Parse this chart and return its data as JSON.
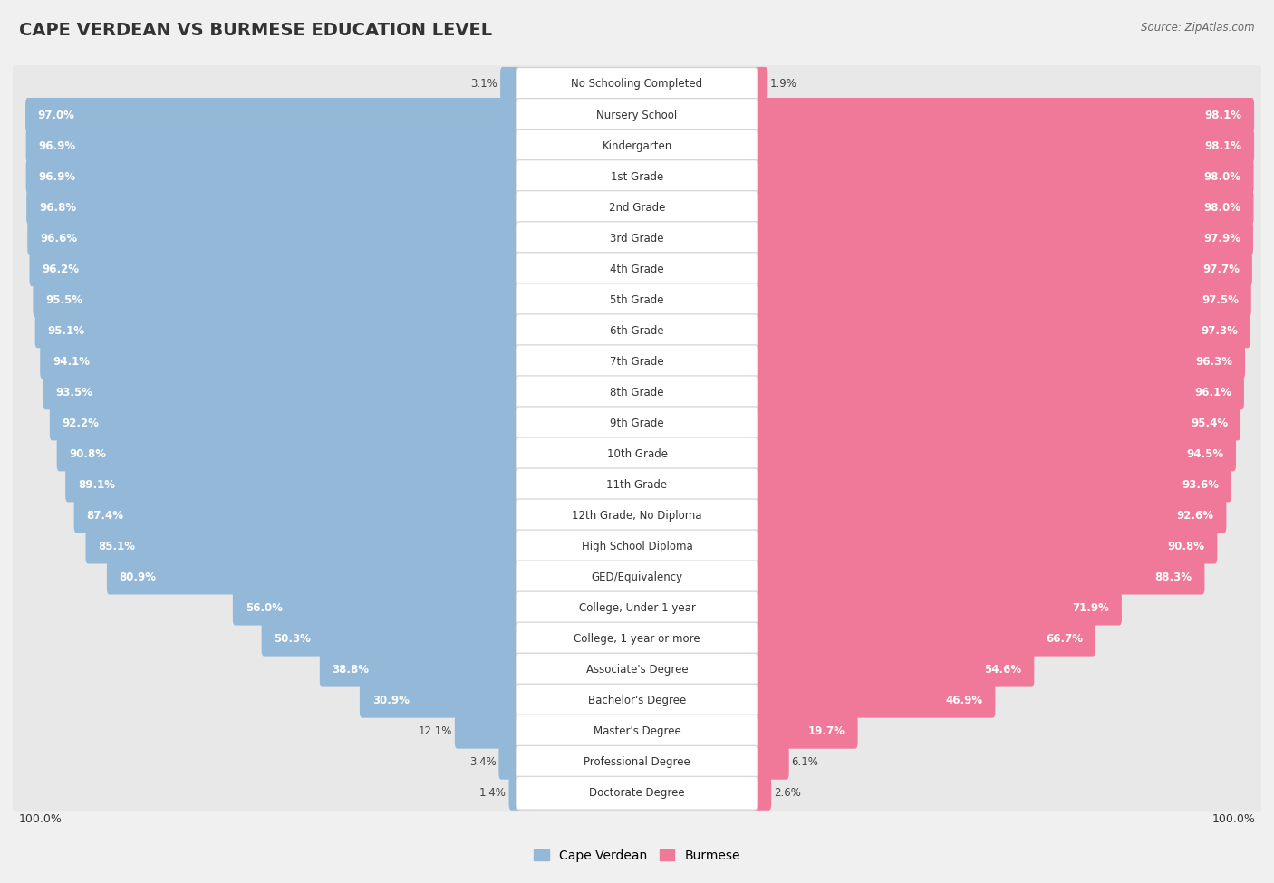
{
  "title": "CAPE VERDEAN VS BURMESE EDUCATION LEVEL",
  "source": "Source: ZipAtlas.com",
  "categories": [
    "No Schooling Completed",
    "Nursery School",
    "Kindergarten",
    "1st Grade",
    "2nd Grade",
    "3rd Grade",
    "4th Grade",
    "5th Grade",
    "6th Grade",
    "7th Grade",
    "8th Grade",
    "9th Grade",
    "10th Grade",
    "11th Grade",
    "12th Grade, No Diploma",
    "High School Diploma",
    "GED/Equivalency",
    "College, Under 1 year",
    "College, 1 year or more",
    "Associate's Degree",
    "Bachelor's Degree",
    "Master's Degree",
    "Professional Degree",
    "Doctorate Degree"
  ],
  "cape_verdean": [
    3.1,
    97.0,
    96.9,
    96.9,
    96.8,
    96.6,
    96.2,
    95.5,
    95.1,
    94.1,
    93.5,
    92.2,
    90.8,
    89.1,
    87.4,
    85.1,
    80.9,
    56.0,
    50.3,
    38.8,
    30.9,
    12.1,
    3.4,
    1.4
  ],
  "burmese": [
    1.9,
    98.1,
    98.1,
    98.0,
    98.0,
    97.9,
    97.7,
    97.5,
    97.3,
    96.3,
    96.1,
    95.4,
    94.5,
    93.6,
    92.6,
    90.8,
    88.3,
    71.9,
    66.7,
    54.6,
    46.9,
    19.7,
    6.1,
    2.6
  ],
  "blue_color": "#94b8d8",
  "pink_color": "#f07898",
  "bg_color": "#f0f0f0",
  "row_bg_color": "#e8e8e8",
  "label_bg_color": "#ffffff",
  "title_fontsize": 14,
  "label_fontsize": 8.5,
  "value_fontsize": 8.5,
  "legend_fontsize": 10,
  "axis_fontsize": 9
}
